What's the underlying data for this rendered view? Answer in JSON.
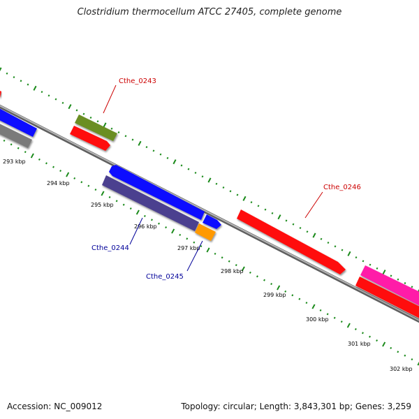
{
  "title": "Clostridium thermocellum ATCC 27405, complete genome",
  "footer": {
    "accession": "Accession: NC_009012",
    "summary": "Topology: circular; Length: 3,843,301 bp; Genes: 3,259"
  },
  "colors": {
    "backbone": "#8c8c8c",
    "tick": "#1a8a1a",
    "label_forward": "#cc0000",
    "label_reverse": "#000099",
    "feature_red": "#ff1010",
    "feature_blue": "#1010ff",
    "feature_gray": "#7a7a7a",
    "feature_olive": "#6b8e23",
    "feature_slate": "#4b3f8f",
    "feature_orange": "#ff9900",
    "feature_pink": "#ff1aa8"
  },
  "position_labels": [
    "293 kbp",
    "294 kbp",
    "295 kbp",
    "296 kbp",
    "297 kbp",
    "298 kbp",
    "299 kbp",
    "300 kbp",
    "301 kbp",
    "302 kbp"
  ],
  "feature_labels": [
    {
      "text": "Cthe_0243",
      "strand": "forward"
    },
    {
      "text": "Cthe_0246",
      "strand": "forward"
    },
    {
      "text": "Cthe_0244",
      "strand": "reverse"
    },
    {
      "text": "Cthe_0245",
      "strand": "reverse"
    }
  ]
}
